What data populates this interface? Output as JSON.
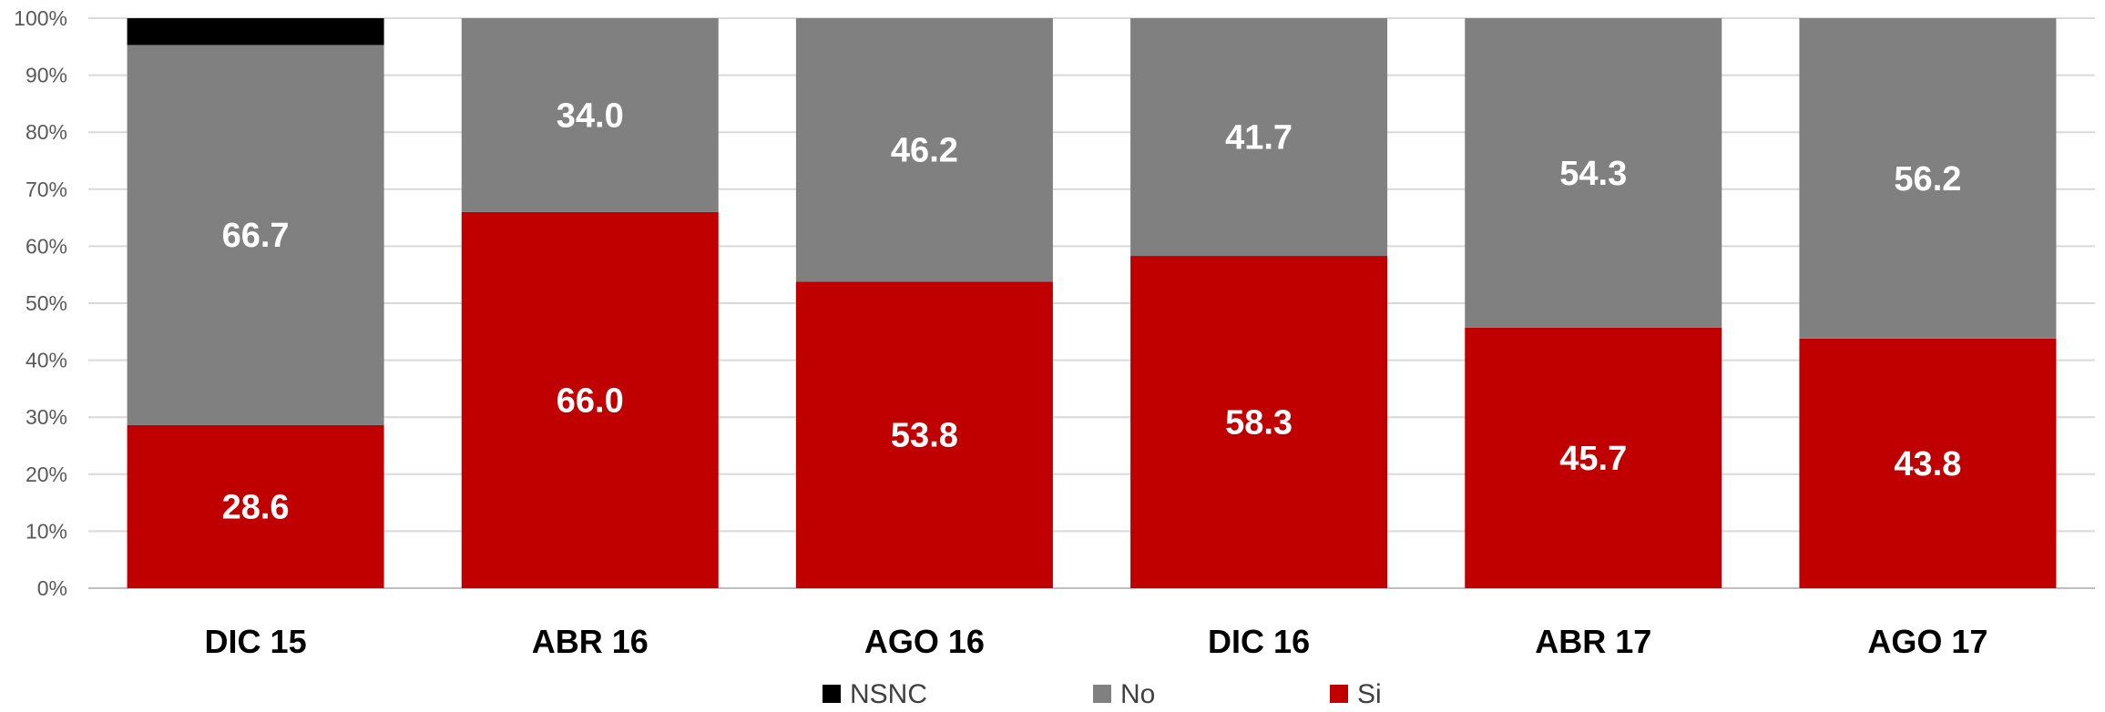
{
  "chart_data": {
    "type": "bar",
    "stacked": true,
    "percent_stacked": true,
    "categories": [
      "DIC 15",
      "ABR 16",
      "AGO 16",
      "DIC 16",
      "ABR 17",
      "AGO 17"
    ],
    "series": [
      {
        "name": "Si",
        "color": "#c00000",
        "values": [
          28.6,
          66.0,
          53.8,
          58.3,
          45.7,
          43.8
        ]
      },
      {
        "name": "No",
        "color": "#808080",
        "values": [
          66.7,
          34.0,
          46.2,
          41.7,
          54.3,
          56.2
        ]
      },
      {
        "name": "NSNC",
        "color": "#000000",
        "values": [
          4.7,
          0,
          0,
          0,
          0,
          0
        ]
      }
    ],
    "data_labels_shown": [
      "Si",
      "No"
    ],
    "ylim": [
      0,
      100
    ],
    "yticks": [
      "0%",
      "10%",
      "20%",
      "30%",
      "40%",
      "50%",
      "60%",
      "70%",
      "80%",
      "90%",
      "100%"
    ],
    "legend_order": [
      "NSNC",
      "No",
      "Si"
    ],
    "legend_position": "bottom",
    "grid": true
  }
}
